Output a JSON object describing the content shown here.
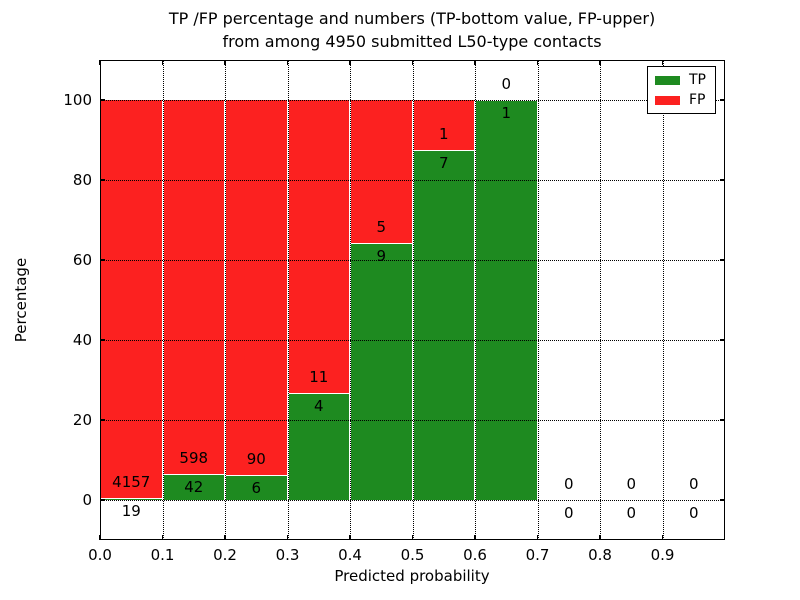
{
  "title": {
    "line1": "TP /FP percentage and numbers (TP-bottom value, FP-upper)",
    "line2": "from among 4950 submitted L50-type contacts"
  },
  "axes": {
    "xlabel": "Predicted probability",
    "ylabel": "Percentage",
    "yticks": [
      0,
      20,
      40,
      60,
      80,
      100
    ],
    "xticks": [
      "0.0",
      "0.1",
      "0.2",
      "0.3",
      "0.4",
      "0.5",
      "0.6",
      "0.7",
      "0.8",
      "0.9"
    ]
  },
  "legend": {
    "items": [
      {
        "label": "TP",
        "color": "#1e8a20"
      },
      {
        "label": "FP",
        "color": "#fc2120"
      }
    ]
  },
  "chart_data": {
    "type": "bar",
    "subtype": "stacked-percentage",
    "title": "TP /FP percentage and numbers (TP-bottom value, FP-upper) from among 4950 submitted L50-type contacts",
    "xlabel": "Predicted probability",
    "ylabel": "Percentage",
    "xlim": [
      0.0,
      1.0
    ],
    "ylim": [
      -10,
      110
    ],
    "grid": true,
    "legend_position": "upper right",
    "bin_width": 0.1,
    "categories": [
      "0.0-0.1",
      "0.1-0.2",
      "0.2-0.3",
      "0.3-0.4",
      "0.4-0.5",
      "0.5-0.6",
      "0.6-0.7",
      "0.7-0.8",
      "0.8-0.9",
      "0.9-1.0"
    ],
    "series": [
      {
        "name": "TP",
        "color": "#1e8a20",
        "values": [
          19,
          42,
          6,
          4,
          9,
          7,
          1,
          0,
          0,
          0
        ]
      },
      {
        "name": "FP",
        "color": "#fc2120",
        "values": [
          4157,
          598,
          90,
          11,
          5,
          1,
          0,
          0,
          0,
          0
        ]
      }
    ],
    "tp_percent_of_bin": [
      0.45,
      6.56,
      6.25,
      26.67,
      64.29,
      87.5,
      100.0,
      null,
      null,
      null
    ],
    "total_submitted": 4950
  }
}
